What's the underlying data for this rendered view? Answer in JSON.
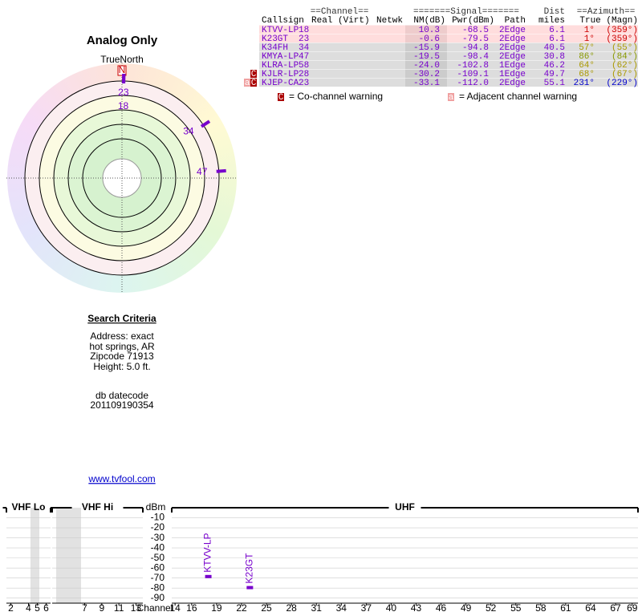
{
  "left": {
    "title": "Analog Only",
    "search_title": "Search Criteria",
    "criteria": [
      "Address: exact",
      "hot springs, AR",
      "Zipcode 71913",
      "Height: 5.0 ft."
    ],
    "datecode_label": "db datecode",
    "datecode": "201109190354",
    "link": "www.tvfool.com"
  },
  "polar": {
    "north_label": "TrueNorth",
    "north": "N",
    "stations": [
      {
        "channel": 23,
        "azimuth": 1
      },
      {
        "channel": 18,
        "azimuth": 1
      },
      {
        "channel": 34,
        "azimuth": 57
      },
      {
        "channel": 47,
        "azimuth": 86
      }
    ]
  },
  "table": {
    "group_headers": [
      "==Channel==",
      "=======Signal=======",
      "Dist",
      "==Azimuth=="
    ],
    "columns": [
      "Callsign",
      "Real (Virt)",
      "Netwk",
      "NM(dB)",
      "Pwr(dBm)",
      "Path",
      "miles",
      "True (Magn)"
    ],
    "rows": [
      {
        "callsign": "KTVV-LP",
        "real": "18",
        "nm": "10.3",
        "pwr": "-68.5",
        "path": "2Edge",
        "dist": "6.1",
        "az_true": "1°",
        "az_magn": "(359°)"
      },
      {
        "callsign": "K23GT",
        "real": "23",
        "nm": "-0.6",
        "pwr": "-79.5",
        "path": "2Edge",
        "dist": "6.1",
        "az_true": "1°",
        "az_magn": "(359°)"
      },
      {
        "callsign": "K34FH",
        "real": "34",
        "nm": "-15.9",
        "pwr": "-94.8",
        "path": "2Edge",
        "dist": "40.5",
        "az_true": "57°",
        "az_magn": "(55°)"
      },
      {
        "callsign": "KMYA-LP",
        "real": "47",
        "nm": "-19.5",
        "pwr": "-98.4",
        "path": "2Edge",
        "dist": "30.8",
        "az_true": "86°",
        "az_magn": "(84°)"
      },
      {
        "callsign": "KLRA-LP",
        "real": "58",
        "nm": "-24.0",
        "pwr": "-102.8",
        "path": "1Edge",
        "dist": "46.2",
        "az_true": "64°",
        "az_magn": "(62°)"
      },
      {
        "callsign": "KJLR-LP",
        "real": "28",
        "nm": "-30.2",
        "pwr": "-109.1",
        "path": "1Edge",
        "dist": "49.7",
        "az_true": "68°",
        "az_magn": "(67°)",
        "warnings": [
          "C"
        ]
      },
      {
        "callsign": "KJEP-CA",
        "real": "23",
        "nm": "-33.1",
        "pwr": "-112.0",
        "path": "2Edge",
        "dist": "55.1",
        "az_true": "231°",
        "az_magn": "(229°)",
        "warnings": [
          "a",
          "C"
        ]
      }
    ]
  },
  "legend": [
    {
      "icon": "C",
      "text": "= Co-channel warning"
    },
    {
      "icon": "a",
      "text": "= Adjacent channel warning"
    }
  ],
  "spectrum": {
    "y_label": "dBm",
    "x_label": "Channel",
    "ylim": [
      -95,
      0
    ],
    "yticks": [
      -10,
      -20,
      -30,
      -40,
      -50,
      -60,
      -70,
      -80,
      -90
    ],
    "panels": [
      {
        "title": "VHF Lo",
        "xlim": [
          1.5,
          6.5
        ],
        "xticks": [
          2,
          4,
          5,
          6
        ]
      },
      {
        "title": "VHF Hi",
        "xlim": [
          3.2,
          13.8
        ],
        "xticks": [
          7,
          9,
          11,
          13
        ]
      },
      {
        "title": "UHF",
        "xlim": [
          13.6,
          69.7
        ],
        "xticks": [
          14,
          16,
          19,
          22,
          25,
          28,
          31,
          34,
          37,
          40,
          43,
          46,
          49,
          52,
          55,
          58,
          61,
          64,
          67,
          69
        ],
        "bars": [
          {
            "channel": 18,
            "label": "KTVV-LP",
            "value": -68.5
          },
          {
            "channel": 23,
            "label": "K23GT",
            "value": -79.5
          }
        ]
      }
    ]
  }
}
